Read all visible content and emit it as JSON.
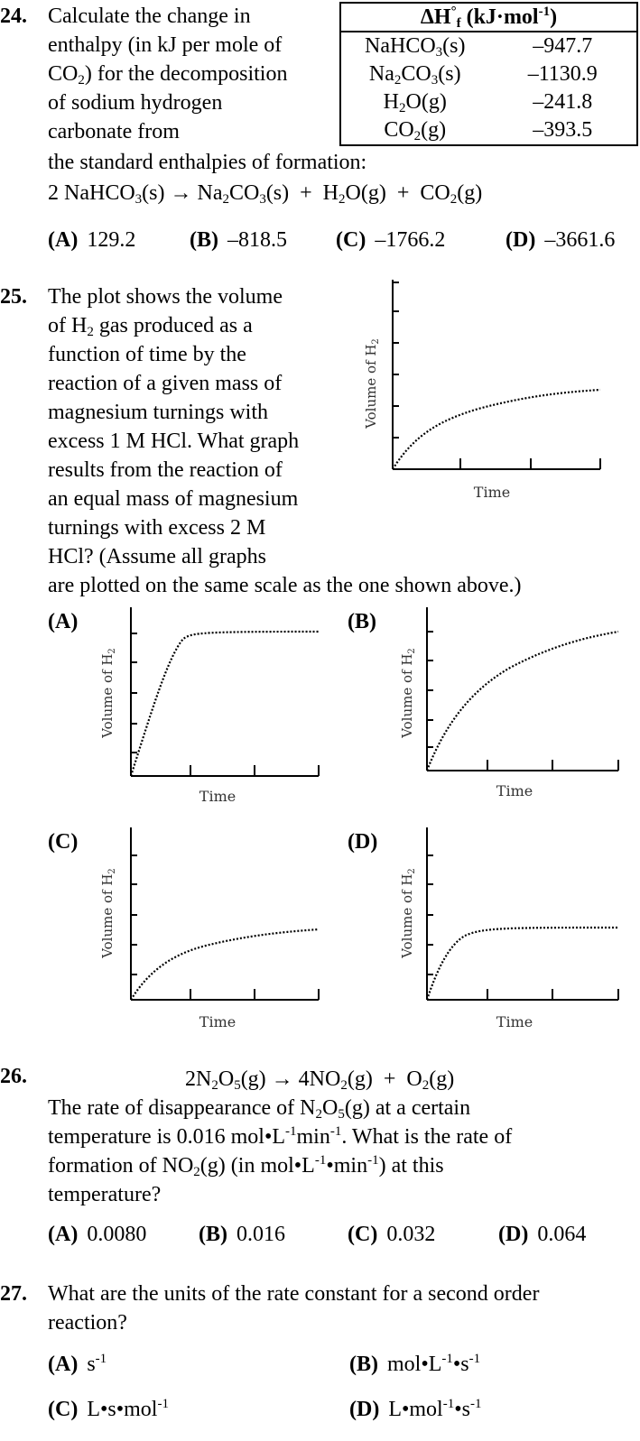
{
  "q24": {
    "number": "24.",
    "lines": [
      "Calculate the change in",
      "enthalpy (in kJ per mole of",
      "carbonate from",
      "the standard enthalpies of formation:"
    ],
    "line_co2_pre": "CO",
    "line_co2_post": ") for the decomposition",
    "line_sodium": "of sodium hydrogen",
    "table_header_pre": "ΔH",
    "table_header_post": " (kJ·mol",
    "table_header_sup": "-1",
    "table_header_end": ")",
    "table_rows": [
      {
        "species": "NaHCO3(s)",
        "value": "–947.7"
      },
      {
        "species": "Na2CO3(s)",
        "value": "–1130.9"
      },
      {
        "species": "H2O(g)",
        "value": "–241.8"
      },
      {
        "species": "CO2(g)",
        "value": "–393.5"
      }
    ],
    "options": [
      {
        "label": "(A)",
        "text": "129.2"
      },
      {
        "label": "(B)",
        "text": "–818.5"
      },
      {
        "label": "(C)",
        "text": "–1766.2"
      },
      {
        "label": "(D)",
        "text": "–3661.6"
      }
    ]
  },
  "q25": {
    "number": "25.",
    "lines": [
      "The plot shows the volume",
      "function of time by the",
      "reaction of a given mass of",
      "magnesium turnings with",
      "excess 1 M HCl. What graph",
      "results from the reaction of",
      "an equal mass of magnesium",
      "turnings with excess 2 M",
      "HCl? (Assume all graphs",
      "are plotted on the same scale as the one shown above.)"
    ],
    "line2_pre": "of H",
    "line2_post": " gas produced as a",
    "graph_ylabel": "Volume of H",
    "graph_xlabel": "Time",
    "option_labels": [
      "(A)",
      "(B)",
      "(C)",
      "(D)"
    ]
  },
  "q26": {
    "number": "26.",
    "line2_pre": "The rate of disappearance of N",
    "line2_post": "(g) at a certain",
    "line3_pre": "temperature is 0.016 mol•L",
    "line3_post": ". What is the rate of",
    "line4_pre": "formation of NO",
    "line4_mid": "(g) (in mol•L",
    "line4_post": ") at this",
    "line5": "temperature?",
    "options": [
      {
        "label": "(A)",
        "text": "0.0080"
      },
      {
        "label": "(B)",
        "text": "0.016"
      },
      {
        "label": "(C)",
        "text": "0.032"
      },
      {
        "label": "(D)",
        "text": "0.064"
      }
    ]
  },
  "q27": {
    "number": "27.",
    "lines": [
      "What are the units of the rate constant for a second order",
      "reaction?"
    ],
    "option_labels": [
      "(A)",
      "(B)",
      "(C)",
      "(D)"
    ]
  }
}
